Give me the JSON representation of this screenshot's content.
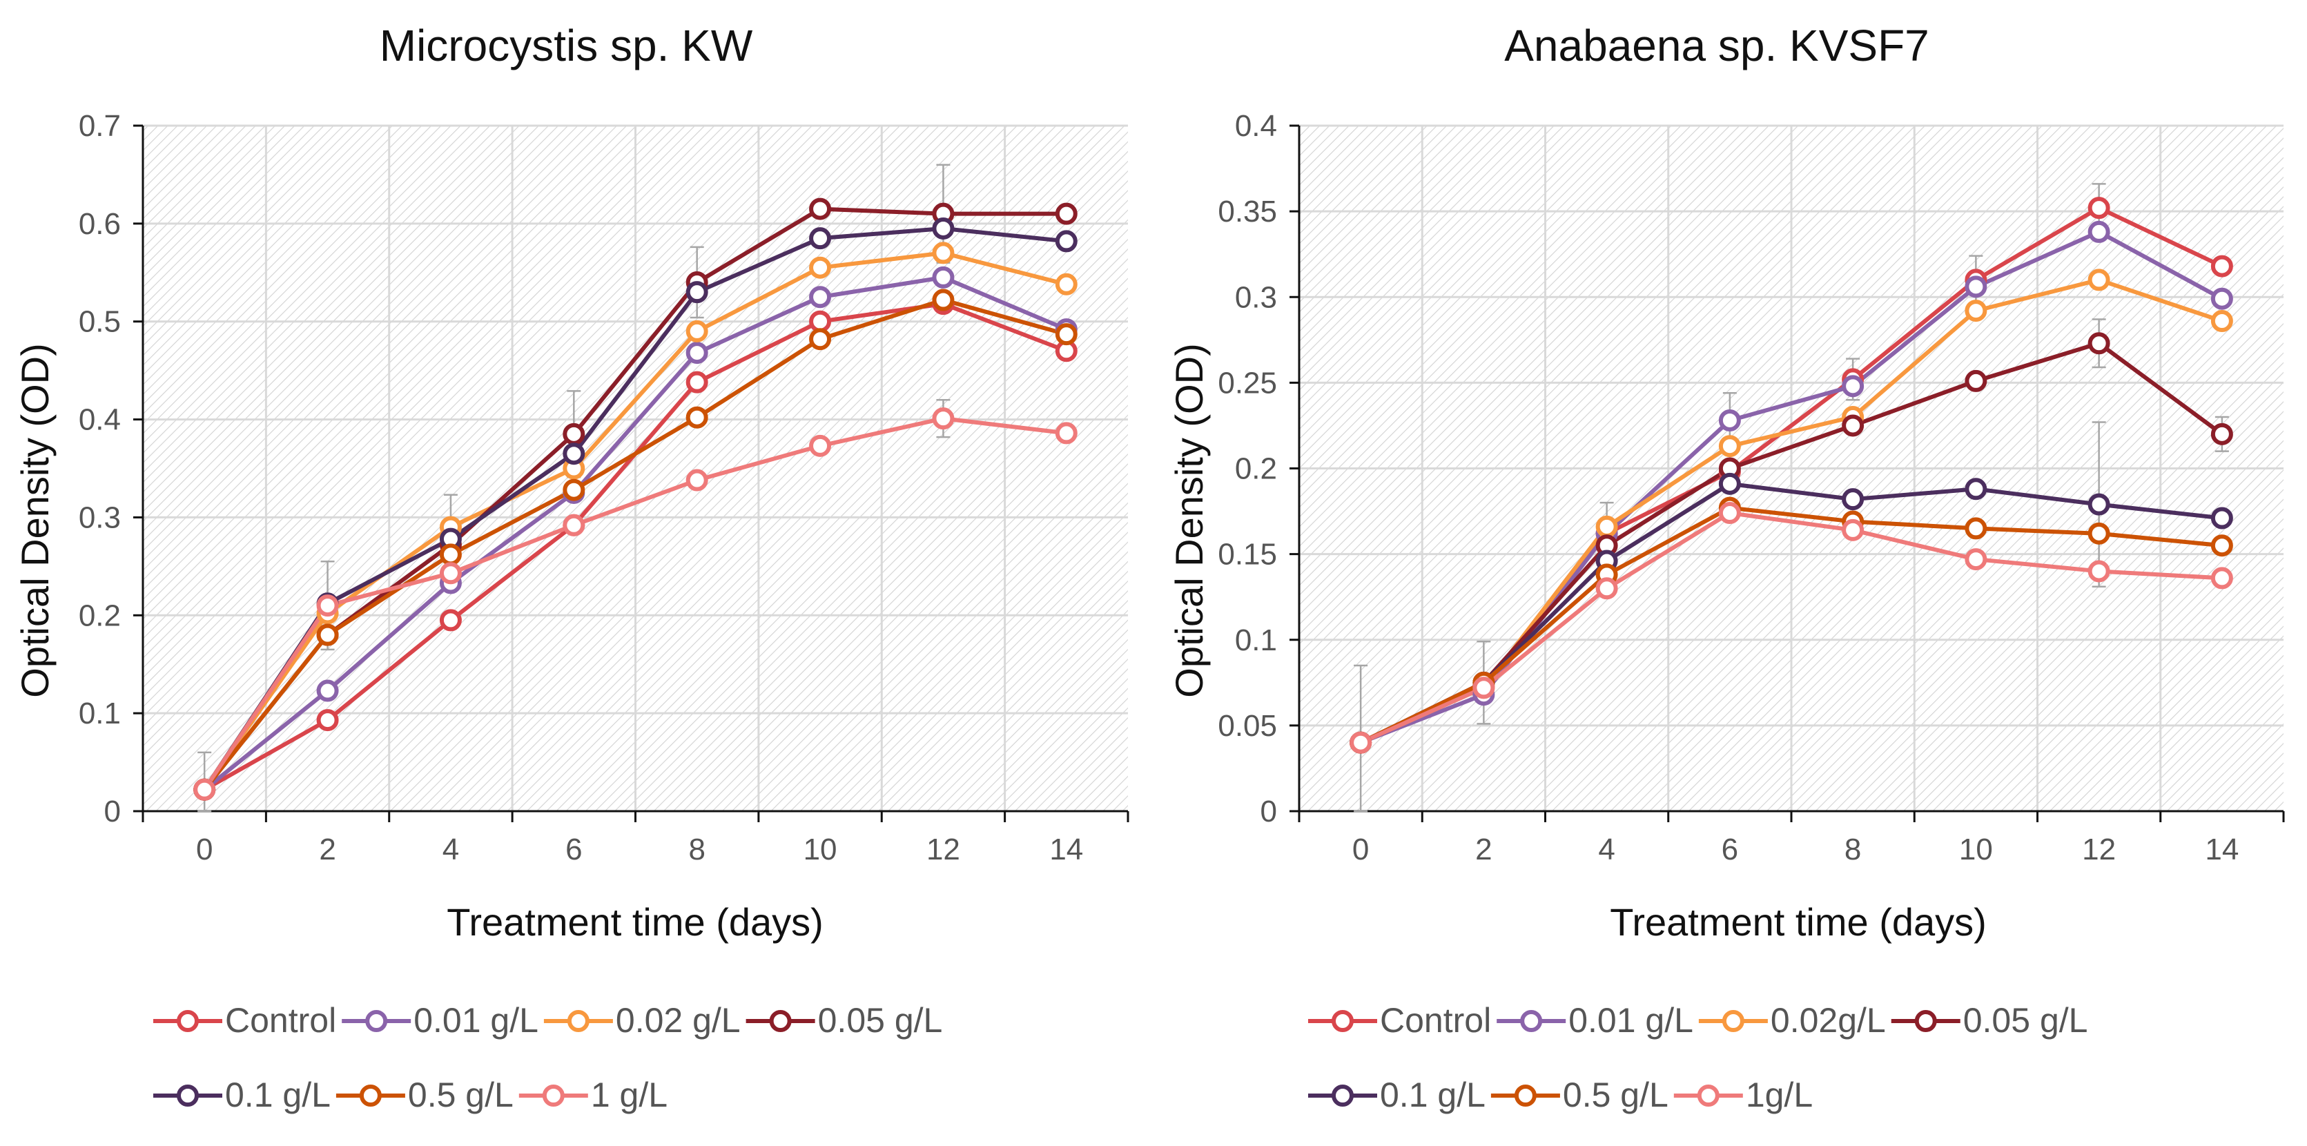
{
  "chart_data": [
    {
      "type": "line",
      "title": "Microcystis sp. KW",
      "xlabel": "Treatment time (days)",
      "ylabel": "Optical Density (OD)",
      "x": [
        0,
        2,
        4,
        6,
        8,
        10,
        12,
        14
      ],
      "xlim": [
        -1,
        15
      ],
      "ylim": [
        0,
        0.7
      ],
      "yticks": [
        "0",
        "0.1",
        "0.2",
        "0.3",
        "0.4",
        "0.5",
        "0.6",
        "0.7"
      ],
      "xticks": [
        "0",
        "2",
        "4",
        "6",
        "8",
        "10",
        "12",
        "14"
      ],
      "grid": true,
      "legend_position": "bottom",
      "series": [
        {
          "name": "Control",
          "color": "#D9454B",
          "values": [
            0.022,
            0.093,
            0.195,
            0.292,
            0.438,
            0.5,
            0.518,
            0.47
          ]
        },
        {
          "name": "0.01 g/L",
          "color": "#8A63AA",
          "values": [
            0.022,
            0.123,
            0.233,
            0.325,
            0.468,
            0.525,
            0.545,
            0.492
          ]
        },
        {
          "name": "0.02 g/L",
          "color": "#F8983E",
          "values": [
            0.022,
            0.202,
            0.29,
            0.35,
            0.49,
            0.555,
            0.57,
            0.538
          ]
        },
        {
          "name": "0.05 g/L",
          "color": "#8B1E28",
          "values": [
            0.022,
            0.18,
            0.272,
            0.385,
            0.54,
            0.615,
            0.61,
            0.61
          ]
        },
        {
          "name": "0.1 g/L",
          "color": "#4B2E5E",
          "values": [
            0.022,
            0.212,
            0.278,
            0.365,
            0.53,
            0.585,
            0.595,
            0.582
          ]
        },
        {
          "name": "0.5 g/L",
          "color": "#CC5204",
          "values": [
            0.022,
            0.18,
            0.262,
            0.328,
            0.402,
            0.482,
            0.522,
            0.487
          ]
        },
        {
          "name": "1 g/L",
          "color": "#EF7A7A",
          "values": [
            0.022,
            0.21,
            0.243,
            0.292,
            0.338,
            0.373,
            0.401,
            0.386
          ]
        }
      ],
      "error_bars": [
        {
          "x": 0,
          "y": 0.025,
          "err": 0.035
        },
        {
          "x": 2,
          "y": 0.21,
          "err": 0.045
        },
        {
          "x": 4,
          "y": 0.285,
          "err": 0.038
        },
        {
          "x": 6,
          "y": 0.385,
          "err": 0.044
        },
        {
          "x": 8,
          "y": 0.54,
          "err": 0.036
        },
        {
          "x": 12,
          "y": 0.61,
          "err": 0.05
        },
        {
          "x": 12,
          "y": 0.401,
          "err": 0.019
        }
      ]
    },
    {
      "type": "line",
      "title": "Anabaena sp. KVSF7",
      "xlabel": "Treatment time (days)",
      "ylabel": "Optical Density (OD)",
      "x": [
        0,
        2,
        4,
        6,
        8,
        10,
        12,
        14
      ],
      "xlim": [
        -1,
        15
      ],
      "ylim": [
        0,
        0.4
      ],
      "yticks": [
        "0",
        "0.05",
        "0.1",
        "0.15",
        "0.2",
        "0.25",
        "0.3",
        "0.35",
        "0.4"
      ],
      "xticks": [
        "0",
        "2",
        "4",
        "6",
        "8",
        "10",
        "12",
        "14"
      ],
      "grid": true,
      "legend_position": "bottom",
      "series": [
        {
          "name": "Control",
          "color": "#D9454B",
          "values": [
            0.04,
            0.073,
            0.162,
            0.198,
            0.252,
            0.31,
            0.352,
            0.318
          ]
        },
        {
          "name": "0.01 g/L",
          "color": "#8A63AA",
          "values": [
            0.04,
            0.068,
            0.162,
            0.228,
            0.248,
            0.306,
            0.338,
            0.299
          ]
        },
        {
          "name": "0.02g/L",
          "color": "#F8983E",
          "values": [
            0.04,
            0.072,
            0.166,
            0.213,
            0.23,
            0.292,
            0.31,
            0.286
          ]
        },
        {
          "name": "0.05 g/L",
          "color": "#8B1E28",
          "values": [
            0.04,
            0.075,
            0.155,
            0.2,
            0.225,
            0.251,
            0.273,
            0.22
          ]
        },
        {
          "name": "0.1 g/L",
          "color": "#4B2E5E",
          "values": [
            0.04,
            0.075,
            0.146,
            0.191,
            0.182,
            0.188,
            0.179,
            0.171
          ]
        },
        {
          "name": "0.5 g/L",
          "color": "#CC5204",
          "values": [
            0.04,
            0.075,
            0.138,
            0.177,
            0.169,
            0.165,
            0.162,
            0.155
          ]
        },
        {
          "name": "1g/L",
          "color": "#EF7A7A",
          "values": [
            0.04,
            0.072,
            0.13,
            0.174,
            0.164,
            0.147,
            0.14,
            0.136
          ]
        }
      ],
      "error_bars": [
        {
          "x": 0,
          "y": 0.04,
          "err": 0.045
        },
        {
          "x": 2,
          "y": 0.075,
          "err": 0.024
        },
        {
          "x": 4,
          "y": 0.166,
          "err": 0.014
        },
        {
          "x": 6,
          "y": 0.228,
          "err": 0.016
        },
        {
          "x": 8,
          "y": 0.252,
          "err": 0.012
        },
        {
          "x": 10,
          "y": 0.31,
          "err": 0.014
        },
        {
          "x": 12,
          "y": 0.352,
          "err": 0.014
        },
        {
          "x": 12,
          "y": 0.179,
          "err": 0.048
        },
        {
          "x": 12,
          "y": 0.273,
          "err": 0.014
        },
        {
          "x": 14,
          "y": 0.22,
          "err": 0.01
        }
      ]
    }
  ]
}
